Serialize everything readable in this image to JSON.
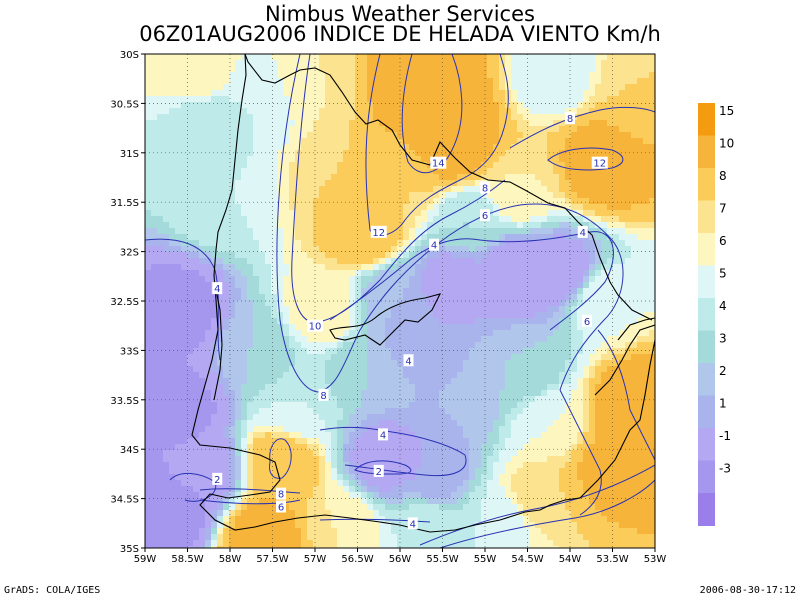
{
  "header": {
    "line1": "Nimbus Weather Services",
    "line2": "06Z01AUG2006 INDICE DE HELADA VIENTO Km/h"
  },
  "footer": {
    "left": "GrADS: COLA/IGES",
    "right": "2006-08-30-17:12"
  },
  "chart_data": {
    "type": "heatmap",
    "title": "06Z01AUG2006 INDICE DE HELADA VIENTO Km/h",
    "subtitle": "Nimbus Weather Services",
    "x_ticks": [
      "59W",
      "58.5W",
      "58W",
      "57.5W",
      "57W",
      "56.5W",
      "56W",
      "55.5W",
      "55W",
      "54.5W",
      "54W",
      "53.5W",
      "53W"
    ],
    "y_ticks": [
      "30S",
      "30.5S",
      "31S",
      "31.5S",
      "32S",
      "32.5S",
      "33S",
      "33.5S",
      "34S",
      "34.5S",
      "35S"
    ],
    "xlim": [
      -59,
      -53
    ],
    "ylim": [
      -35,
      -30
    ],
    "grid": true,
    "colorbar": {
      "labels": [
        "15",
        "10",
        "8",
        "7",
        "6",
        "5",
        "4",
        "3",
        "2",
        "1",
        "-1",
        "-3"
      ],
      "colors": [
        "#f59b0f",
        "#f7b43a",
        "#fbcc5a",
        "#fbe38f",
        "#fdf7bf",
        "#dff6f6",
        "#bfeaea",
        "#a4dad9",
        "#b0c6ea",
        "#a9b4ec",
        "#b4a8f2",
        "#a596ee",
        "#9a7fea"
      ]
    },
    "contour_labels": [
      {
        "value": "14",
        "lon": -55.55,
        "lat": -31.1
      },
      {
        "value": "12",
        "lon": -56.25,
        "lat": -31.8
      },
      {
        "value": "12",
        "lon": -53.65,
        "lat": -31.1
      },
      {
        "value": "10",
        "lon": -57.0,
        "lat": -32.75
      },
      {
        "value": "8",
        "lon": -54.0,
        "lat": -30.65
      },
      {
        "value": "8",
        "lon": -55.0,
        "lat": -31.35
      },
      {
        "value": "8",
        "lon": -56.9,
        "lat": -33.45
      },
      {
        "value": "8",
        "lon": -57.4,
        "lat": -34.45
      },
      {
        "value": "6",
        "lon": -55.0,
        "lat": -31.63
      },
      {
        "value": "6",
        "lon": -53.8,
        "lat": -32.7
      },
      {
        "value": "6",
        "lon": -57.4,
        "lat": -34.58
      },
      {
        "value": "4",
        "lon": -55.6,
        "lat": -31.93
      },
      {
        "value": "4",
        "lon": -53.85,
        "lat": -31.8
      },
      {
        "value": "4",
        "lon": -58.15,
        "lat": -32.37
      },
      {
        "value": "4",
        "lon": -55.9,
        "lat": -33.1
      },
      {
        "value": "4",
        "lon": -56.2,
        "lat": -33.85
      },
      {
        "value": "4",
        "lon": -55.85,
        "lat": -34.75
      },
      {
        "value": "2",
        "lon": -56.25,
        "lat": -34.22
      },
      {
        "value": "2",
        "lon": -58.15,
        "lat": -34.3
      }
    ],
    "field_centers": [
      {
        "lon": -55.7,
        "lat": -30.3,
        "value": 15
      },
      {
        "lon": -55.4,
        "lat": -30.9,
        "value": 13
      },
      {
        "lon": -53.6,
        "lat": -31.1,
        "value": 12
      },
      {
        "lon": -56.4,
        "lat": -31.8,
        "value": 10
      },
      {
        "lon": -56.7,
        "lat": -31.2,
        "value": 8
      },
      {
        "lon": -56.9,
        "lat": -32.6,
        "value": 7
      },
      {
        "lon": -53.2,
        "lat": -33.6,
        "value": 14
      },
      {
        "lon": -53.5,
        "lat": -34.2,
        "value": 11
      },
      {
        "lon": -54.4,
        "lat": -34.5,
        "value": 8
      },
      {
        "lon": -57.4,
        "lat": -34.15,
        "value": 10
      },
      {
        "lon": -57.6,
        "lat": -34.9,
        "value": 12
      },
      {
        "lon": -58.4,
        "lat": -30.2,
        "value": 7
      },
      {
        "lon": -58.3,
        "lat": -30.7,
        "value": 4
      },
      {
        "lon": -57.7,
        "lat": -30.5,
        "value": 5
      },
      {
        "lon": -57.0,
        "lat": -30.3,
        "value": 7
      },
      {
        "lon": -54.2,
        "lat": -30.2,
        "value": 5
      },
      {
        "lon": -53.2,
        "lat": -30.4,
        "value": 8
      },
      {
        "lon": -58.1,
        "lat": -31.5,
        "value": 5
      },
      {
        "lon": -58.6,
        "lat": -32.6,
        "value": -2
      },
      {
        "lon": -58.6,
        "lat": -33.6,
        "value": -2
      },
      {
        "lon": -58.3,
        "lat": -34.2,
        "value": 0
      },
      {
        "lon": -58.7,
        "lat": -34.6,
        "value": -3
      },
      {
        "lon": -57.7,
        "lat": -33.0,
        "value": 3
      },
      {
        "lon": -57.2,
        "lat": -33.6,
        "value": 5
      },
      {
        "lon": -55.4,
        "lat": -32.3,
        "value": 0
      },
      {
        "lon": -54.6,
        "lat": -32.2,
        "value": -1
      },
      {
        "lon": -54.1,
        "lat": -32.2,
        "value": 0
      },
      {
        "lon": -55.8,
        "lat": -32.9,
        "value": 1
      },
      {
        "lon": -56.2,
        "lat": -34.1,
        "value": 0
      },
      {
        "lon": -55.6,
        "lat": -34.2,
        "value": 1
      },
      {
        "lon": -55.3,
        "lat": -33.5,
        "value": 2
      },
      {
        "lon": -54.5,
        "lat": -33.2,
        "value": 3
      },
      {
        "lon": -55.2,
        "lat": -31.7,
        "value": 4
      },
      {
        "lon": -56.1,
        "lat": -32.45,
        "value": 2
      },
      {
        "lon": -56.4,
        "lat": -33.2,
        "value": 3
      },
      {
        "lon": -54.8,
        "lat": -34.7,
        "value": 5
      },
      {
        "lon": -55.7,
        "lat": -34.85,
        "value": 5
      },
      {
        "lon": -56.7,
        "lat": -34.75,
        "value": 7
      },
      {
        "lon": -54.2,
        "lat": -33.7,
        "value": 6
      },
      {
        "lon": -53.6,
        "lat": -32.5,
        "value": 6
      },
      {
        "lon": -54.6,
        "lat": -31.4,
        "value": 7
      },
      {
        "lon": -56.0,
        "lat": -31.3,
        "value": 8
      }
    ]
  }
}
